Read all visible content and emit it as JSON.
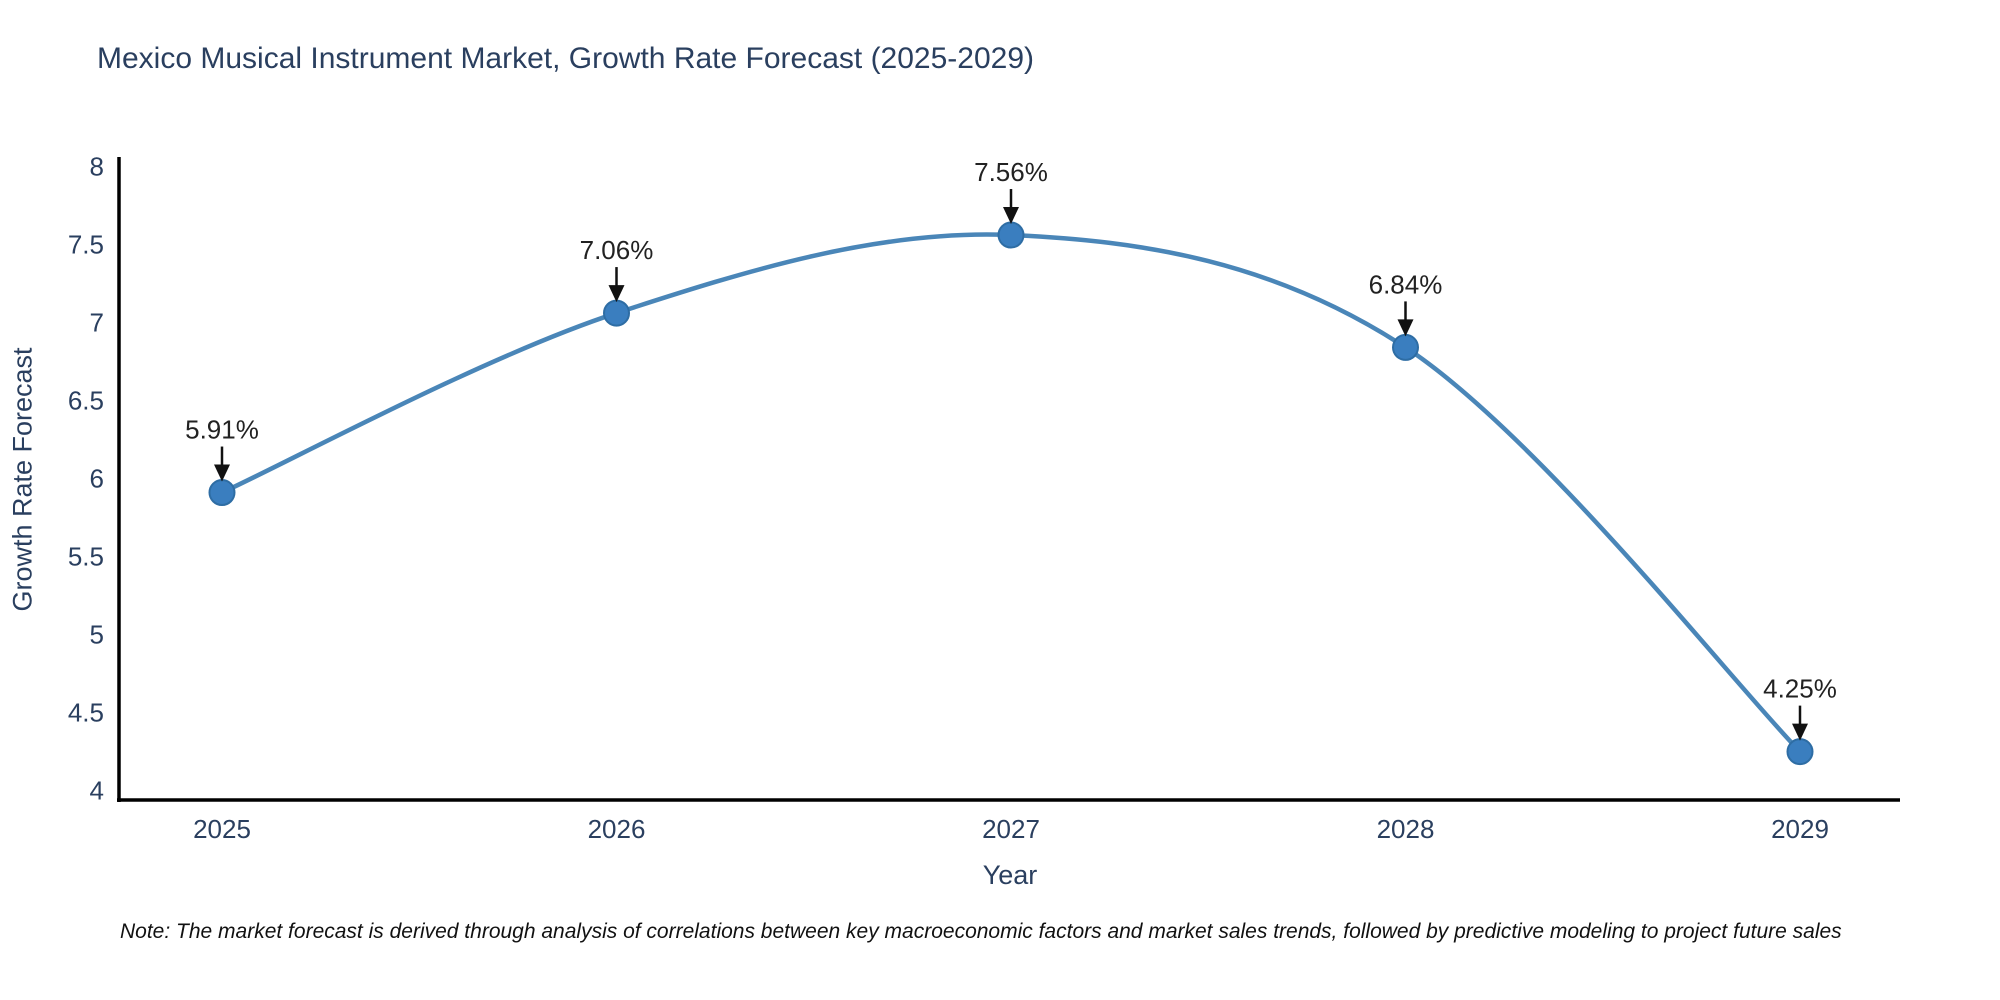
{
  "page": {
    "title": "Mexico Musical Instrument Market, Growth Rate Forecast (2025-2029)"
  },
  "chart_data": {
    "type": "line",
    "title": "Mexico Musical Instrument Market, Growth Rate Forecast (2025-2029)",
    "xlabel": "Year",
    "ylabel": "Growth Rate Forecast",
    "x": [
      2025,
      2026,
      2027,
      2028,
      2029
    ],
    "values": [
      5.91,
      7.06,
      7.56,
      6.84,
      4.25
    ],
    "point_labels": [
      "5.91%",
      "7.06%",
      "7.56%",
      "6.84%",
      "4.25%"
    ],
    "xticks": [
      "2025",
      "2026",
      "2027",
      "2028",
      "2029"
    ],
    "yticks": [
      4,
      4.5,
      5,
      5.5,
      6,
      6.5,
      7,
      7.5,
      8
    ],
    "ylim": [
      3.94,
      8.06
    ],
    "grid": false,
    "line_shape": "spline",
    "legend": "none",
    "annotation_style": "value label with down arrow to marker",
    "colors": {
      "line": "#4a86b8",
      "marker": "#3a7ebf",
      "marker_edge": "#2e6da4",
      "axis": "#000000",
      "tick_text": "#2a3f5f",
      "annotation_text": "#222222",
      "arrow": "#111111"
    }
  },
  "note": "Note: The market forecast is derived through analysis of correlations between key macroeconomic factors and market sales trends, followed by predictive modeling to project future sales"
}
